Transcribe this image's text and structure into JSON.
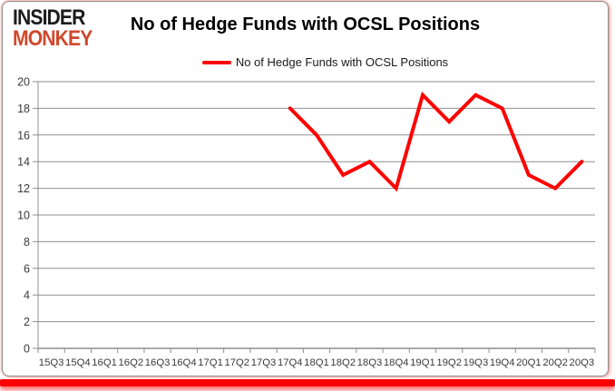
{
  "logo": {
    "line1": "INSIDER",
    "line2": "MONKEY",
    "line1_color": "#1c1c1c",
    "line2_color": "#d0472b"
  },
  "title": "No of Hedge Funds with OCSL Positions",
  "legend": {
    "label": "No of Hedge Funds with OCSL Positions",
    "swatch_color": "#ff0000"
  },
  "bottom_bar_color": "#fb0000",
  "chart_data": {
    "type": "line",
    "title": "No of Hedge Funds with OCSL Positions",
    "categories": [
      "15Q3",
      "15Q4",
      "16Q1",
      "16Q2",
      "16Q3",
      "16Q4",
      "17Q1",
      "17Q2",
      "17Q3",
      "17Q4",
      "18Q1",
      "18Q2",
      "18Q3",
      "18Q4",
      "19Q1",
      "19Q2",
      "19Q3",
      "19Q4",
      "20Q1",
      "20Q2",
      "20Q3"
    ],
    "series": [
      {
        "name": "No of Hedge Funds with OCSL Positions",
        "color": "#ff0000",
        "values": [
          null,
          null,
          null,
          null,
          null,
          null,
          null,
          null,
          null,
          18,
          16,
          13,
          14,
          12,
          19,
          17,
          19,
          18,
          13,
          12,
          14
        ]
      }
    ],
    "xlabel": "",
    "ylabel": "",
    "ylim": [
      0,
      20
    ],
    "ytick_step": 2,
    "grid": true,
    "grid_color": "#8f8f8f",
    "axis_color": "#8f8f8f",
    "tick_label_color": "#3a3a3a",
    "legend_position": "top-center"
  }
}
